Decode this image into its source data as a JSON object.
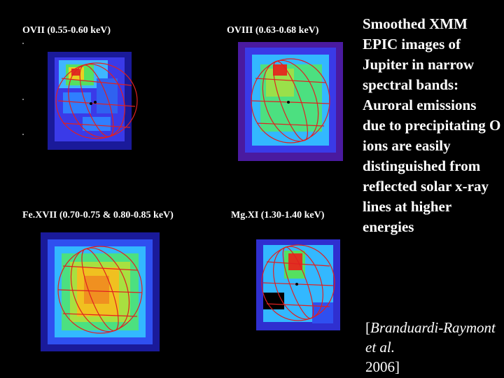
{
  "figure": {
    "panels": [
      {
        "label": "OVII (0.55-0.60 keV)"
      },
      {
        "label": "OVIII (0.63-0.68 keV)"
      },
      {
        "label": "Fe.XVII (0.70-0.75 & 0.80-0.85 keV)"
      },
      {
        "label": "Mg.XI (1.30-1.40 keV)"
      }
    ]
  },
  "caption": {
    "text": "Smoothed XMM EPIC images of Jupiter in narrow spectral bands: Auroral emissions due to precipitating O ions are easily distinguished from reflected solar x-ray lines at higher energies"
  },
  "citation": {
    "open": "[",
    "authors": "Branduardi-Raymont et al.",
    "year": "2006]"
  }
}
